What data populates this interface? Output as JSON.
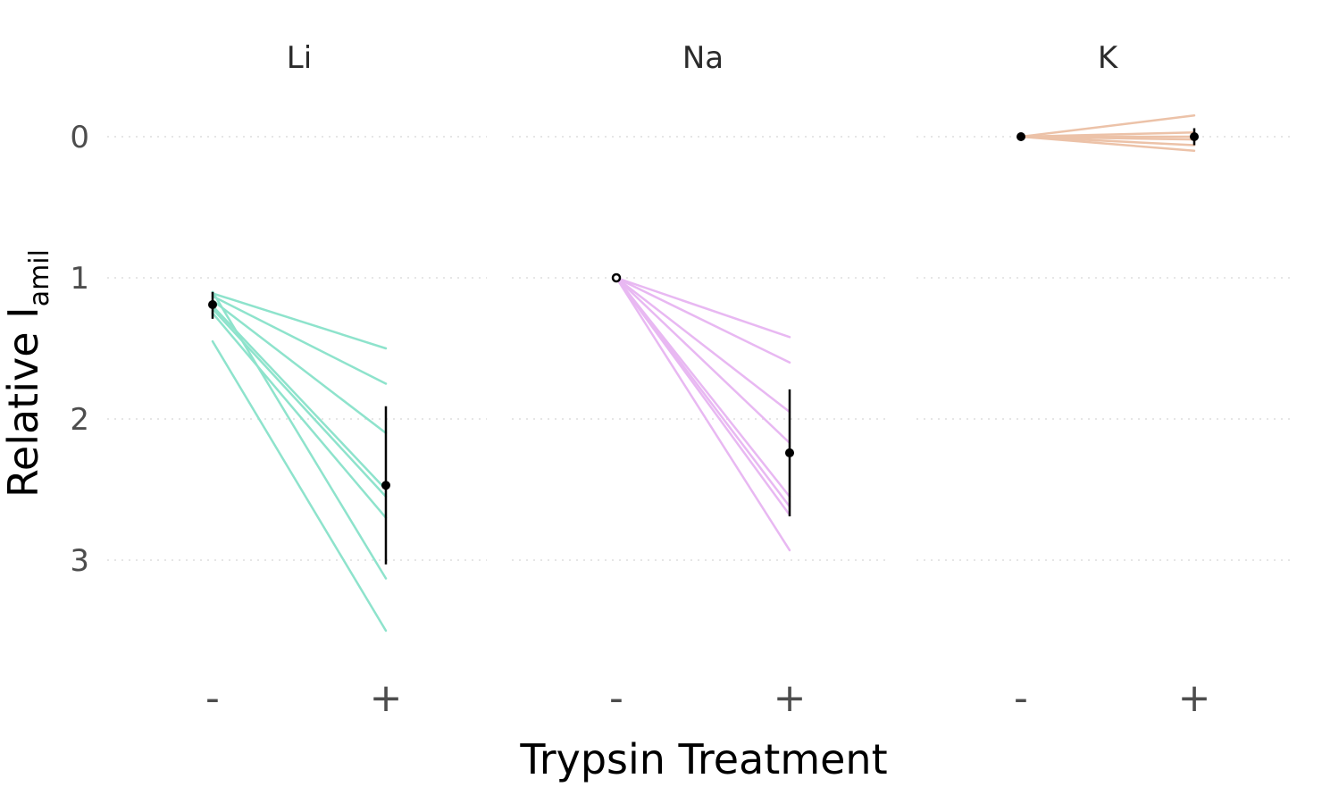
{
  "chart_data": {
    "type": "line",
    "facets": [
      "Li",
      "Na",
      "K"
    ],
    "x": [
      "-",
      "+"
    ],
    "xlabel": "Trypsin Treatment",
    "ylabel": {
      "main": "Relative I",
      "subscript": "amil"
    },
    "y_ticks": [
      0,
      1,
      2,
      3
    ],
    "ylim": [
      0,
      3.75
    ],
    "y_reversed": true,
    "grid": "horizontal dotted",
    "colors": {
      "Li": "#8ee3cc",
      "Na": "#e8b8f2",
      "K": "#ecc2a8",
      "summary": "#000000"
    },
    "panels": [
      {
        "name": "Li",
        "lines": [
          {
            "minus": 1.11,
            "plus": 1.5
          },
          {
            "minus": 1.13,
            "plus": 1.75
          },
          {
            "minus": 1.16,
            "plus": 2.1
          },
          {
            "minus": 1.2,
            "plus": 2.5
          },
          {
            "minus": 1.22,
            "plus": 2.55
          },
          {
            "minus": 1.25,
            "plus": 2.7
          },
          {
            "minus": 1.1,
            "plus": 3.13
          },
          {
            "minus": 1.45,
            "plus": 3.5
          }
        ],
        "summary": {
          "minus": {
            "mean": 1.19,
            "lower": 1.1,
            "upper": 1.29,
            "open": false
          },
          "plus": {
            "mean": 2.47,
            "lower": 1.91,
            "upper": 3.03,
            "open": false
          }
        }
      },
      {
        "name": "Na",
        "lines": [
          {
            "minus": 1.0,
            "plus": 1.42
          },
          {
            "minus": 1.0,
            "plus": 1.6
          },
          {
            "minus": 1.0,
            "plus": 1.95
          },
          {
            "minus": 1.0,
            "plus": 2.17
          },
          {
            "minus": 1.0,
            "plus": 2.55
          },
          {
            "minus": 1.0,
            "plus": 2.62
          },
          {
            "minus": 1.0,
            "plus": 2.68
          },
          {
            "minus": 1.0,
            "plus": 2.93
          }
        ],
        "summary": {
          "minus": {
            "mean": 1.0,
            "lower": 1.0,
            "upper": 1.0,
            "open": true
          },
          "plus": {
            "mean": 2.24,
            "lower": 1.79,
            "upper": 2.69,
            "open": false
          }
        }
      },
      {
        "name": "K",
        "lines": [
          {
            "minus": 0.0,
            "plus": -0.15
          },
          {
            "minus": 0.0,
            "plus": -0.03
          },
          {
            "minus": 0.0,
            "plus": 0.0
          },
          {
            "minus": 0.0,
            "plus": 0.02
          },
          {
            "minus": 0.0,
            "plus": 0.06
          },
          {
            "minus": 0.0,
            "plus": 0.1
          }
        ],
        "summary": {
          "minus": {
            "mean": 0.0,
            "lower": 0.0,
            "upper": 0.0,
            "open": false
          },
          "plus": {
            "mean": 0.0,
            "lower": -0.06,
            "upper": 0.06,
            "open": false
          }
        }
      }
    ]
  }
}
